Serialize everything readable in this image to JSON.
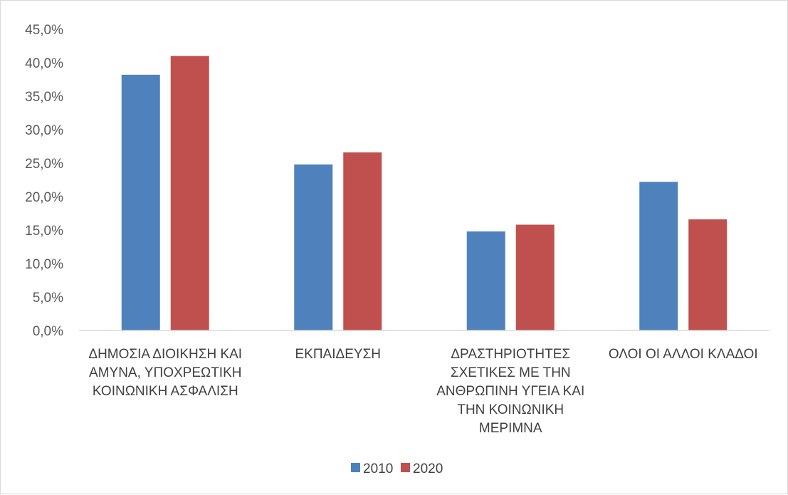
{
  "chart_data": {
    "type": "bar",
    "categories": [
      [
        "ΔΗΜΟΣΙΑ ΔΙΟΙΚΗΣΗ ΚΑΙ",
        "ΑΜΥΝΑ, ΥΠΟΧΡΕΩΤΙΚΗ",
        "ΚΟΙΝΩΝΙΚΗ ΑΣΦΑΛΙΣΗ"
      ],
      [
        "ΕΚΠΑΙΔΕΥΣΗ"
      ],
      [
        "ΔΡΑΣΤΗΡΙΟΤΗΤΕΣ",
        "ΣΧΕΤΙΚΕΣ ΜΕ ΤΗΝ",
        "ΑΝΘΡΩΠΙΝΗ ΥΓΕΙΑ ΚΑΙ",
        "ΤΗΝ ΚΟΙΝΩΝΙΚΗ",
        "ΜΕΡΙΜΝΑ"
      ],
      [
        "ΟΛΟΙ ΟΙ ΑΛΛΟΙ ΚΛΑΔΟΙ"
      ]
    ],
    "series": [
      {
        "name": "2010",
        "color": "#4f81bd",
        "values": [
          38.2,
          24.8,
          14.8,
          22.2
        ]
      },
      {
        "name": "2020",
        "color": "#c0504d",
        "values": [
          41.0,
          26.6,
          15.8,
          16.6
        ]
      }
    ],
    "yticks": [
      "0,0%",
      "5,0%",
      "10,0%",
      "15,0%",
      "20,0%",
      "25,0%",
      "30,0%",
      "35,0%",
      "40,0%",
      "45,0%"
    ],
    "ylim": [
      0,
      45
    ],
    "grid": false,
    "legend_position": "bottom"
  }
}
